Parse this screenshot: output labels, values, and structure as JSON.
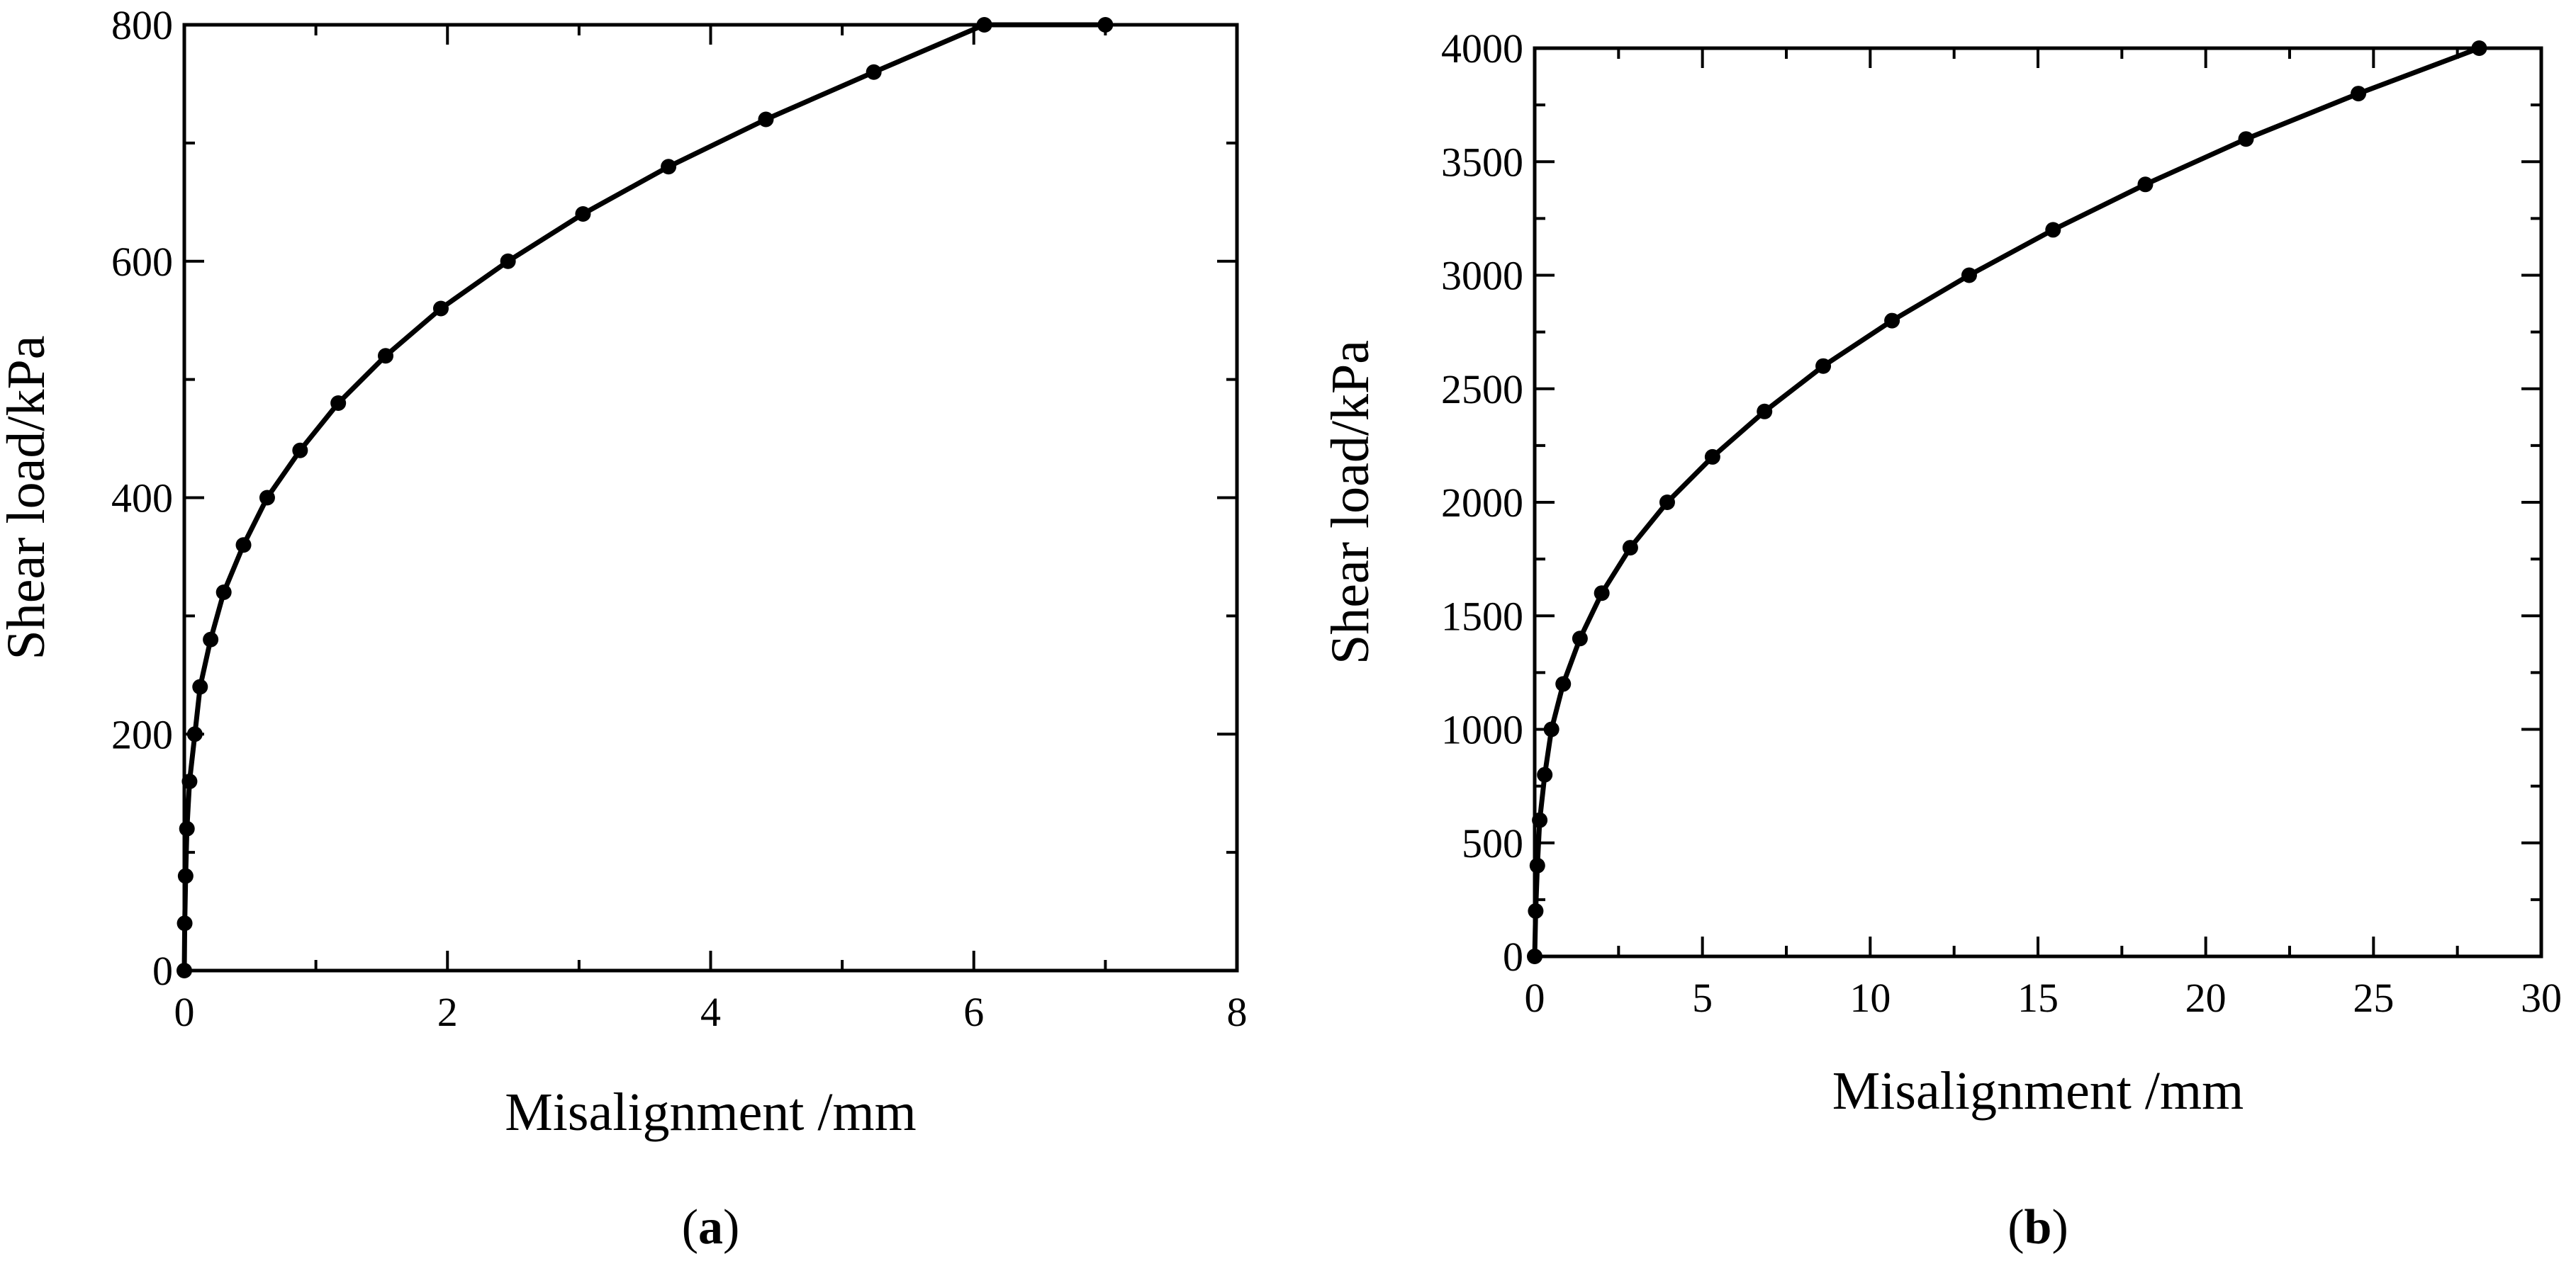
{
  "chart_data": [
    {
      "type": "line",
      "panel_label": "a",
      "xlabel": "Misalignment /mm",
      "ylabel": "Shear load/kPa",
      "xlim": [
        0,
        8
      ],
      "ylim": [
        0,
        800
      ],
      "xticks": [
        0,
        2,
        4,
        6,
        8
      ],
      "yticks": [
        0,
        200,
        400,
        600,
        800
      ],
      "grid": false,
      "series": [
        {
          "x": [
            0,
            0.003,
            0.01,
            0.02,
            0.04,
            0.08,
            0.12,
            0.2,
            0.3,
            0.45,
            0.63,
            0.88,
            1.17,
            1.53,
            1.95,
            2.46,
            3.03,
            3.68,
            4.42,
            5.24,
            6.08,
            7.0
          ],
          "y": [
            0,
            40,
            80,
            120,
            160,
            200,
            240,
            280,
            320,
            360,
            400,
            440,
            480,
            520,
            560,
            600,
            640,
            680,
            720,
            760,
            800,
            800
          ]
        }
      ]
    },
    {
      "type": "line",
      "panel_label": "b",
      "xlabel": "Misalignment /mm",
      "ylabel": "Shear load/kPa",
      "xlim": [
        0,
        30
      ],
      "ylim": [
        0,
        4000
      ],
      "xticks": [
        0,
        5,
        10,
        15,
        20,
        25,
        30
      ],
      "yticks": [
        0,
        500,
        1000,
        1500,
        2000,
        2500,
        3000,
        3500,
        4000
      ],
      "grid": false,
      "series": [
        {
          "x": [
            0,
            0.03,
            0.08,
            0.15,
            0.3,
            0.5,
            0.85,
            1.35,
            2.0,
            2.85,
            3.95,
            5.3,
            6.85,
            8.6,
            10.65,
            12.95,
            15.45,
            18.2,
            21.2,
            24.55,
            28.15
          ],
          "y": [
            0,
            200,
            400,
            600,
            800,
            1000,
            1200,
            1400,
            1600,
            1800,
            2000,
            2200,
            2400,
            2600,
            2800,
            3000,
            3200,
            3400,
            3600,
            3800,
            4000
          ]
        }
      ]
    }
  ]
}
